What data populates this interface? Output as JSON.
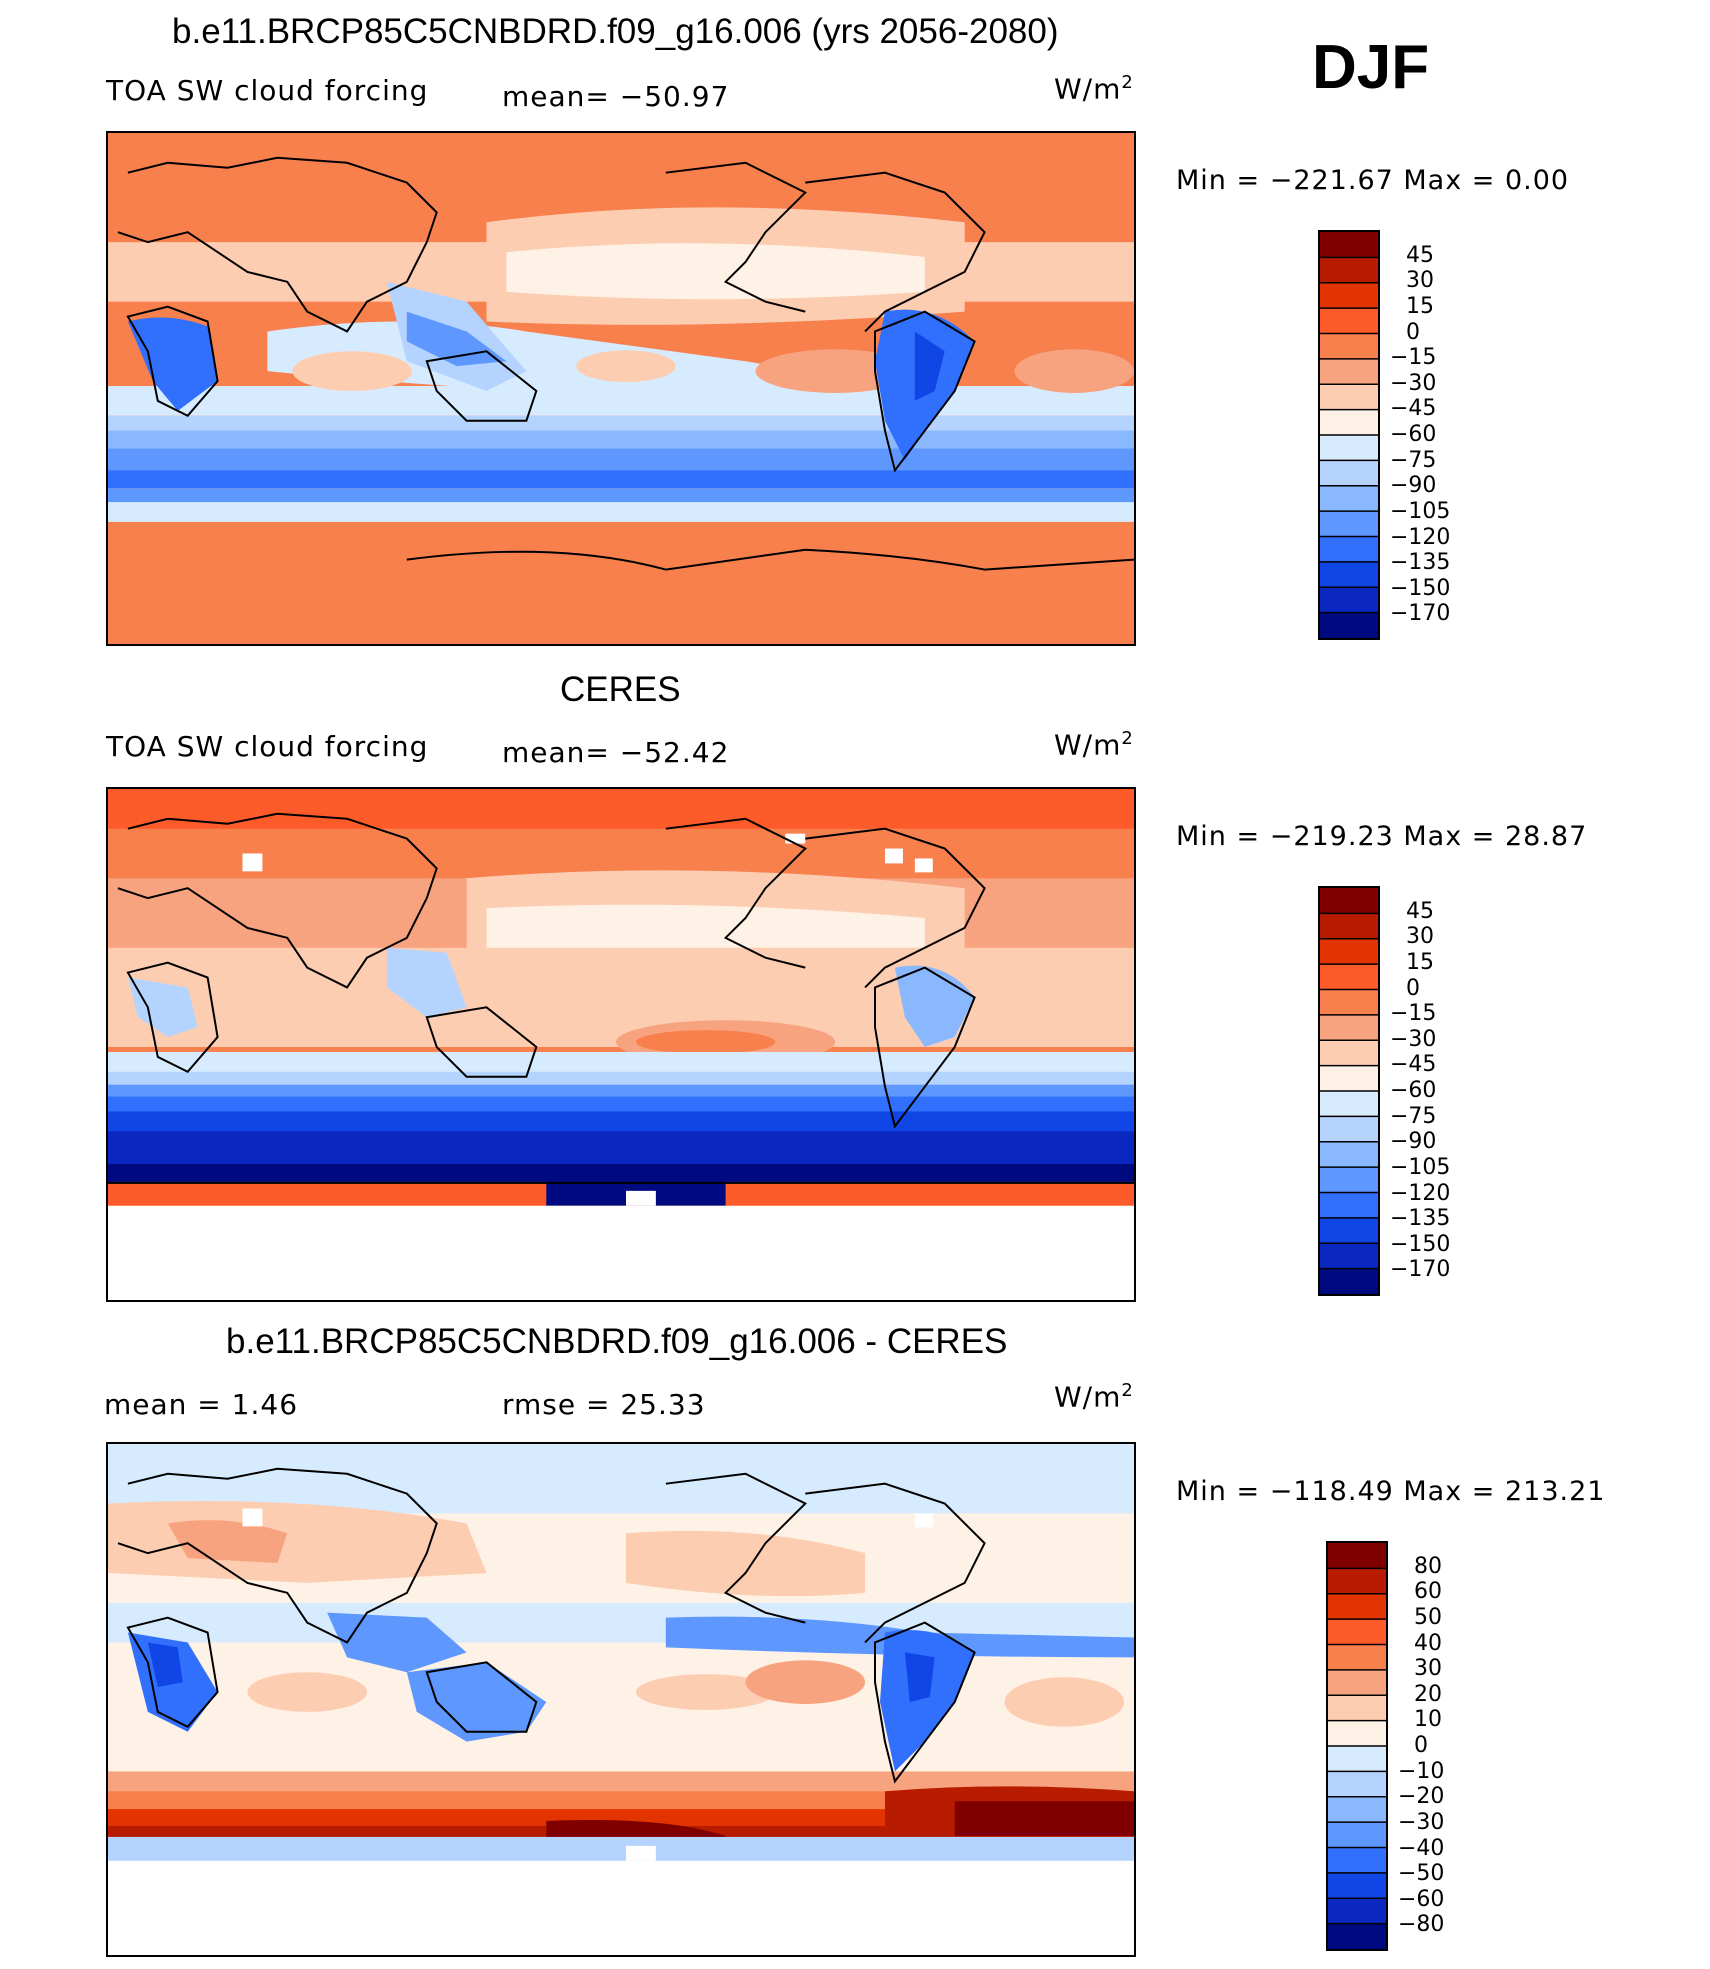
{
  "season": "DJF",
  "palette_abs": [
    "#800000",
    "#b81c00",
    "#e23400",
    "#fd5c2a",
    "#f7804d",
    "#f8a37f",
    "#fdcdb2",
    "#fef2e6",
    "#d7ebfe",
    "#b4d3fe",
    "#8ab8fe",
    "#5e97fe",
    "#3070fd",
    "#1045e6",
    "#0a27c0",
    "#000a80"
  ],
  "palette_diff": [
    "#800000",
    "#b81c00",
    "#e23400",
    "#fd5c2a",
    "#f7804d",
    "#f8a37f",
    "#fdcdb2",
    "#fef2e6",
    "#d7ebfe",
    "#b4d3fe",
    "#8ab8fe",
    "#5e97fe",
    "#3070fd",
    "#1045e6",
    "#0a27c0",
    "#000a80"
  ],
  "panels": [
    {
      "title": "b.e11.BRCP85C5CNBDRD.f09_g16.006 (yrs 2056-2080)",
      "variable": "TOA SW cloud forcing",
      "stat": "mean=  −50.97",
      "units": "W/m",
      "units_sup": "2",
      "minmax": "Min  =  −221.67  Max  =     0.00",
      "levels": [
        "45",
        "30",
        "15",
        "0",
        "−15",
        "−30",
        "−45",
        "−60",
        "−75",
        "−90",
        "−105",
        "−120",
        "−135",
        "−150",
        "−170"
      ],
      "scheme": "model"
    },
    {
      "title": "CERES",
      "variable": "TOA SW cloud forcing",
      "stat": "mean=  −52.42",
      "units": "W/m",
      "units_sup": "2",
      "minmax": "Min  =  −219.23  Max  =   28.87",
      "levels": [
        "45",
        "30",
        "15",
        "0",
        "−15",
        "−30",
        "−45",
        "−60",
        "−75",
        "−90",
        "−105",
        "−120",
        "−135",
        "−150",
        "−170"
      ],
      "scheme": "obs"
    },
    {
      "title": "b.e11.BRCP85C5CNBDRD.f09_g16.006 - CERES",
      "mean_text": "mean  =      1.46",
      "stat": "rmse  =    25.33",
      "units": "W/m",
      "units_sup": "2",
      "minmax": "Min  =  −118.49  Max  =  213.21",
      "levels": [
        "80",
        "60",
        "50",
        "40",
        "30",
        "20",
        "10",
        "0",
        "−10",
        "−20",
        "−30",
        "−40",
        "−50",
        "−60",
        "−80"
      ],
      "scheme": "diff"
    }
  ]
}
